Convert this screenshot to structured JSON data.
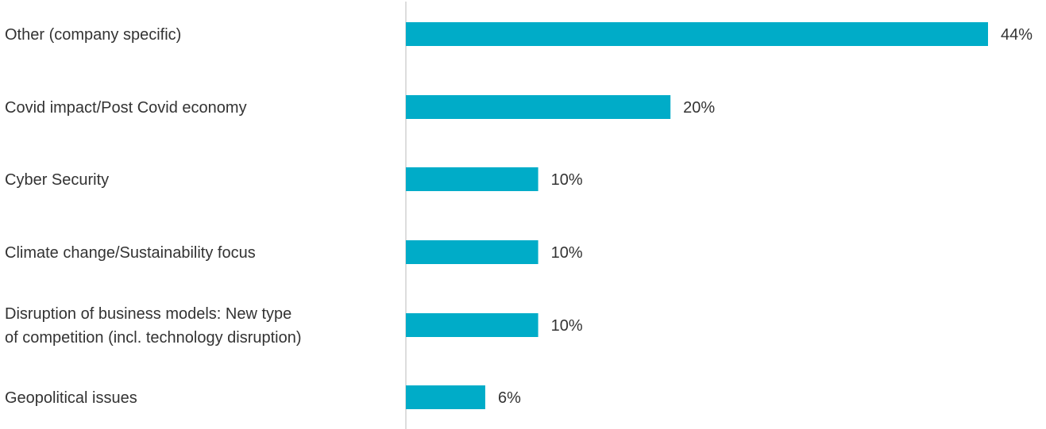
{
  "chart_data": {
    "type": "bar",
    "orientation": "horizontal",
    "categories": [
      [
        "Other (company specific)"
      ],
      [
        "Covid impact/Post Covid economy"
      ],
      [
        "Cyber Security"
      ],
      [
        "Climate change/Sustainability focus"
      ],
      [
        "Disruption of business models: New type",
        "of competition (incl. technology disruption)"
      ],
      [
        "Geopolitical issues"
      ]
    ],
    "values": [
      44,
      20,
      10,
      10,
      10,
      6
    ],
    "value_labels": [
      "44%",
      "20%",
      "10%",
      "10%",
      "10%",
      "6%"
    ],
    "unit": "%",
    "xlim": [
      0,
      44
    ],
    "grid": false,
    "legend": "none",
    "colors": {
      "bar": "#00acc8",
      "axis": "#bbbbbb",
      "text": "#333333"
    }
  }
}
